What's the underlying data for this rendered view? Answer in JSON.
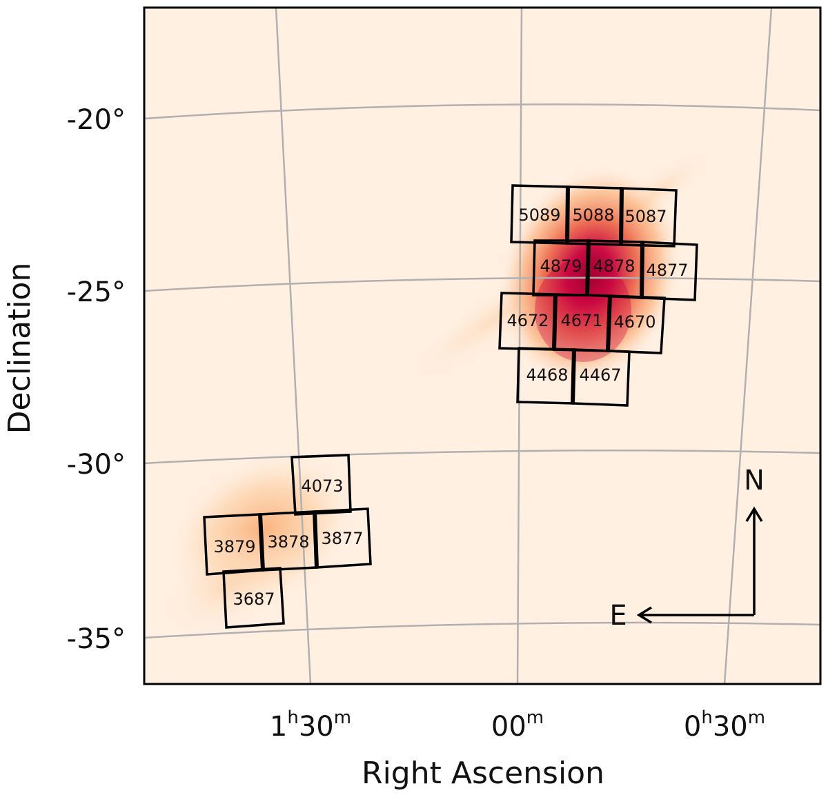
{
  "axes": {
    "xlabel": "Right Ascension",
    "ylabel": "Declination",
    "dec_ticks": [
      "-20°",
      "-25°",
      "-30°",
      "-35°"
    ],
    "ra_ticks": [
      {
        "main": "1",
        "sup1": "h",
        "mid": "30",
        "sup2": "m"
      },
      {
        "main": "",
        "sup1": "",
        "mid": "00",
        "sup2": "m"
      },
      {
        "main": "0",
        "sup1": "h",
        "mid": "30",
        "sup2": "m"
      }
    ]
  },
  "compass": {
    "north": "N",
    "east": "E"
  },
  "tiles": {
    "t5089": "5089",
    "t5088": "5088",
    "t5087": "5087",
    "t4879": "4879",
    "t4878": "4878",
    "t4877": "4877",
    "t4672": "4672",
    "t4671": "4671",
    "t4670": "4670",
    "t4468": "4468",
    "t4467": "4467",
    "t4073": "4073",
    "t3879": "3879",
    "t3878": "3878",
    "t3877": "3877",
    "t3687": "3687"
  },
  "colors": {
    "background": "#fff0e2",
    "heat_low": "#ffd2a8",
    "heat_mid": "#f08040",
    "heat_high": "#c8003c",
    "heat_peak": "#8c0028",
    "grid": "#b0b0b0"
  }
}
